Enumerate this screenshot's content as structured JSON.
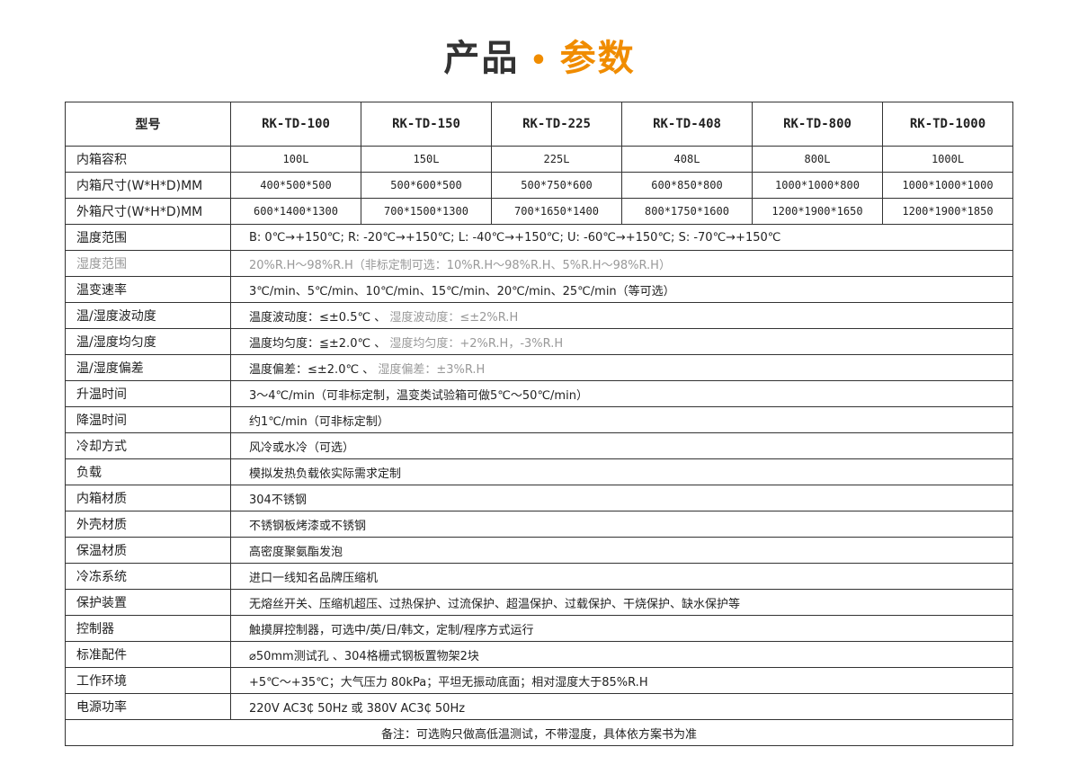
{
  "title": {
    "part1": "产品",
    "dot": "•",
    "part2": "参数"
  },
  "colors": {
    "accent": "#f08c00",
    "muted": "#999999"
  },
  "header": {
    "label": "型号",
    "models": [
      "RK-TD-100",
      "RK-TD-150",
      "RK-TD-225",
      "RK-TD-408",
      "RK-TD-800",
      "RK-TD-1000"
    ]
  },
  "model_rows": [
    {
      "label": "内箱容积",
      "values": [
        "100L",
        "150L",
        "225L",
        "408L",
        "800L",
        "1000L"
      ]
    },
    {
      "label": "内箱尺寸(W*H*D)MM",
      "values": [
        "400*500*500",
        "500*600*500",
        "500*750*600",
        "600*850*800",
        "1000*1000*800",
        "1000*1000*1000"
      ]
    },
    {
      "label": "外箱尺寸(W*H*D)MM",
      "values": [
        "600*1400*1300",
        "700*1500*1300",
        "700*1650*1400",
        "800*1750*1600",
        "1200*1900*1650",
        "1200*1900*1850"
      ]
    }
  ],
  "spec_rows": [
    {
      "label": "温度范围",
      "muted": false,
      "segments": [
        {
          "text": "B: 0℃→+150℃; R: -20℃→+150℃; L: -40℃→+150℃; U: -60℃→+150℃; S: -70℃→+150℃",
          "muted": false
        }
      ]
    },
    {
      "label": "湿度范围",
      "muted": true,
      "segments": [
        {
          "text": "20%R.H～98%R.H（非标定制可选：10%R.H～98%R.H、5%R.H～98%R.H）",
          "muted": true
        }
      ]
    },
    {
      "label": "温变速率",
      "muted": false,
      "segments": [
        {
          "text": "3℃/min、5℃/min、10℃/min、15℃/min、20℃/min、25℃/min（等可选）",
          "muted": false
        }
      ]
    },
    {
      "label": "温/湿度波动度",
      "muted": false,
      "segments": [
        {
          "text": "温度波动度：≤±0.5℃ 、 ",
          "muted": false
        },
        {
          "text": "湿度波动度：≤±2%R.H",
          "muted": true
        }
      ]
    },
    {
      "label": "温/湿度均匀度",
      "muted": false,
      "segments": [
        {
          "text": "温度均匀度：≦±2.0℃ 、 ",
          "muted": false
        },
        {
          "text": "湿度均匀度：+2%R.H，-3%R.H",
          "muted": true
        }
      ]
    },
    {
      "label": "温/湿度偏差",
      "muted": false,
      "segments": [
        {
          "text": "温度偏差：≤±2.0℃  、  ",
          "muted": false
        },
        {
          "text": "湿度偏差：±3%R.H",
          "muted": true
        }
      ]
    },
    {
      "label": "升温时间",
      "muted": false,
      "segments": [
        {
          "text": "3～4℃/min（可非标定制，温变类试验箱可做5℃～50℃/min）",
          "muted": false
        }
      ]
    },
    {
      "label": "降温时间",
      "muted": false,
      "segments": [
        {
          "text": "约1℃/min（可非标定制）",
          "muted": false
        }
      ]
    },
    {
      "label": "冷却方式",
      "muted": false,
      "segments": [
        {
          "text": "风冷或水冷（可选）",
          "muted": false
        }
      ]
    },
    {
      "label": "负载",
      "muted": false,
      "segments": [
        {
          "text": "模拟发热负载依实际需求定制",
          "muted": false
        }
      ]
    },
    {
      "label": "内箱材质",
      "muted": false,
      "segments": [
        {
          "text": "304不锈钢",
          "muted": false
        }
      ]
    },
    {
      "label": "外壳材质",
      "muted": false,
      "segments": [
        {
          "text": "不锈钢板烤漆或不锈钢",
          "muted": false
        }
      ]
    },
    {
      "label": "保温材质",
      "muted": false,
      "segments": [
        {
          "text": "高密度聚氨酯发泡",
          "muted": false
        }
      ]
    },
    {
      "label": "冷冻系统",
      "muted": false,
      "segments": [
        {
          "text": "进口一线知名品牌压缩机",
          "muted": false
        }
      ]
    },
    {
      "label": "保护装置",
      "muted": false,
      "segments": [
        {
          "text": "无熔丝开关、压缩机超压、过热保护、过流保护、超温保护、过载保护、干烧保护、缺水保护等",
          "muted": false
        }
      ]
    },
    {
      "label": "控制器",
      "muted": false,
      "segments": [
        {
          "text": "触摸屏控制器，可选中/英/日/韩文，定制/程序方式运行",
          "muted": false
        }
      ]
    },
    {
      "label": "标准配件",
      "muted": false,
      "segments": [
        {
          "text": "⌀50mm测试孔   、304格栅式钢板置物架2块",
          "muted": false
        }
      ]
    },
    {
      "label": "工作环境",
      "muted": false,
      "segments": [
        {
          "text": "+5℃～+35℃；大气压力 80kPa；平坦无振动底面；相对湿度大于85%R.H",
          "muted": false
        }
      ]
    },
    {
      "label": "电源功率",
      "muted": false,
      "segments": [
        {
          "text": "220V AC3₵ 50Hz 或 380V AC3₵ 50Hz",
          "muted": false
        }
      ]
    }
  ],
  "note": "备注：可选购只做高低温测试，不带湿度，具体依方案书为准"
}
